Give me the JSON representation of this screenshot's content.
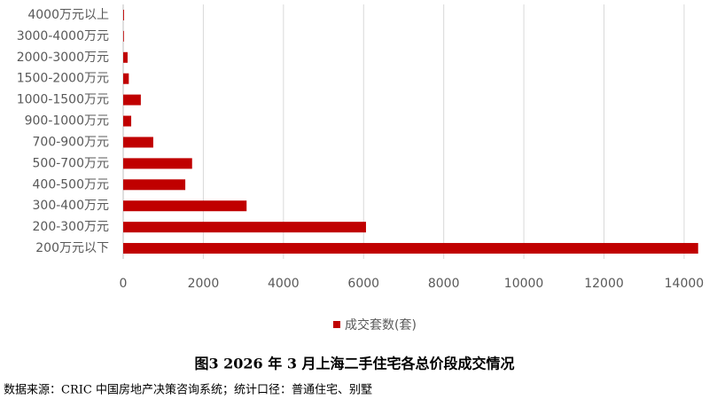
{
  "chart_data": {
    "type": "barh",
    "title": "图3   2026 年 3 月上海二手住宅各总价段成交情况",
    "source": "数据来源：CRIC 中国房地产决策咨询系统；统计口径：普通住宅、别墅",
    "categories": [
      "4000万元以上",
      "3000-4000万元",
      "2000-3000万元",
      "1500-2000万元",
      "1000-1500万元",
      "900-1000万元",
      "700-900万元",
      "500-700万元",
      "400-500万元",
      "300-400万元",
      "200-300万元",
      "200万元以下"
    ],
    "series": [
      {
        "name": "成交套数(套)",
        "color": "#c00000",
        "values": [
          20,
          15,
          110,
          140,
          440,
          200,
          750,
          1720,
          1550,
          3080,
          6060,
          14350
        ]
      }
    ],
    "xlim": [
      0,
      14400
    ],
    "xticks": [
      0,
      2000,
      4000,
      6000,
      8000,
      10000,
      12000,
      14000
    ],
    "grid": true,
    "legend": "bottom"
  }
}
